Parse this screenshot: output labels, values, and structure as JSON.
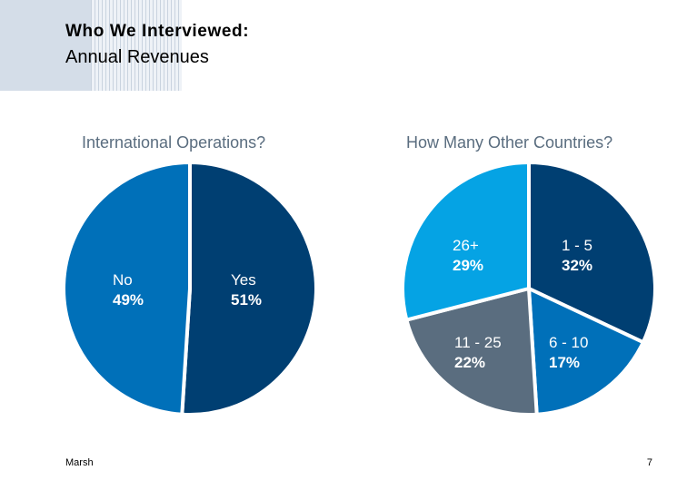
{
  "header": {
    "title": "Who We Interviewed:",
    "subtitle": "Annual Revenues"
  },
  "footer": {
    "source": "Marsh",
    "page_number": "7"
  },
  "chart_data": [
    {
      "type": "pie",
      "title": "International Operations?",
      "slices": [
        {
          "label": "Yes",
          "value": 51,
          "value_label": "51%",
          "color": "#003f72"
        },
        {
          "label": "No",
          "value": 49,
          "value_label": "49%",
          "color": "#0070b9"
        }
      ]
    },
    {
      "type": "pie",
      "title": "How Many Other Countries?",
      "slices": [
        {
          "label": "1 - 5",
          "value": 32,
          "value_label": "32%",
          "color": "#003f72"
        },
        {
          "label": "6 - 10",
          "value": 17,
          "value_label": "17%",
          "color": "#0070b9"
        },
        {
          "label": "11 - 25",
          "value": 22,
          "value_label": "22%",
          "color": "#5a6d7f"
        },
        {
          "label": "26+",
          "value": 29,
          "value_label": "29%",
          "color": "#05a3e4"
        }
      ]
    }
  ]
}
